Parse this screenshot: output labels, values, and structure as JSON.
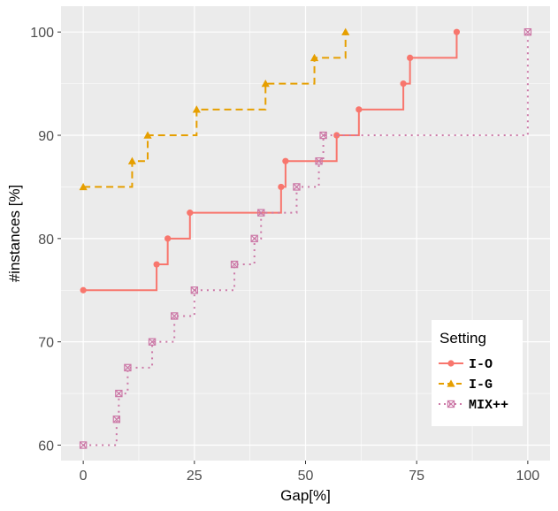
{
  "chart_data": {
    "type": "line",
    "step": true,
    "xlabel": "Gap[%]",
    "ylabel": "#instances [%]",
    "xlim": [
      -5,
      105
    ],
    "ylim": [
      58.5,
      102.5
    ],
    "x_ticks": [
      0,
      25,
      50,
      75,
      100
    ],
    "y_ticks": [
      60,
      70,
      80,
      90,
      100
    ],
    "grid": true,
    "legend": {
      "title": "Setting",
      "position": "bottom-right"
    },
    "series": [
      {
        "name": "I-O",
        "color": "#F8766D",
        "line": "solid",
        "marker": "circle",
        "points": [
          [
            0,
            75
          ],
          [
            16.5,
            77.5
          ],
          [
            19,
            80
          ],
          [
            24,
            82.5
          ],
          [
            44.5,
            85
          ],
          [
            45.5,
            87.5
          ],
          [
            57,
            90
          ],
          [
            62,
            92.5
          ],
          [
            72,
            95
          ],
          [
            73.5,
            97.5
          ],
          [
            84,
            100
          ]
        ]
      },
      {
        "name": "I-G",
        "color": "#E69F00",
        "line": "dashed",
        "marker": "triangle",
        "points": [
          [
            0,
            85
          ],
          [
            11,
            87.5
          ],
          [
            14.5,
            90
          ],
          [
            25.5,
            92.5
          ],
          [
            41,
            95
          ],
          [
            52,
            97.5
          ],
          [
            59,
            100
          ]
        ]
      },
      {
        "name": "MIX++",
        "color": "#CC79A7",
        "line": "dotted",
        "marker": "square-x",
        "points": [
          [
            0,
            60
          ],
          [
            7.5,
            62.5
          ],
          [
            8,
            65
          ],
          [
            10,
            67.5
          ],
          [
            15.5,
            70
          ],
          [
            20.5,
            72.5
          ],
          [
            25,
            75
          ],
          [
            34,
            77.5
          ],
          [
            38.5,
            80
          ],
          [
            40,
            82.5
          ],
          [
            48,
            85
          ],
          [
            53,
            87.5
          ],
          [
            54,
            90
          ],
          [
            100,
            100
          ]
        ]
      }
    ]
  }
}
